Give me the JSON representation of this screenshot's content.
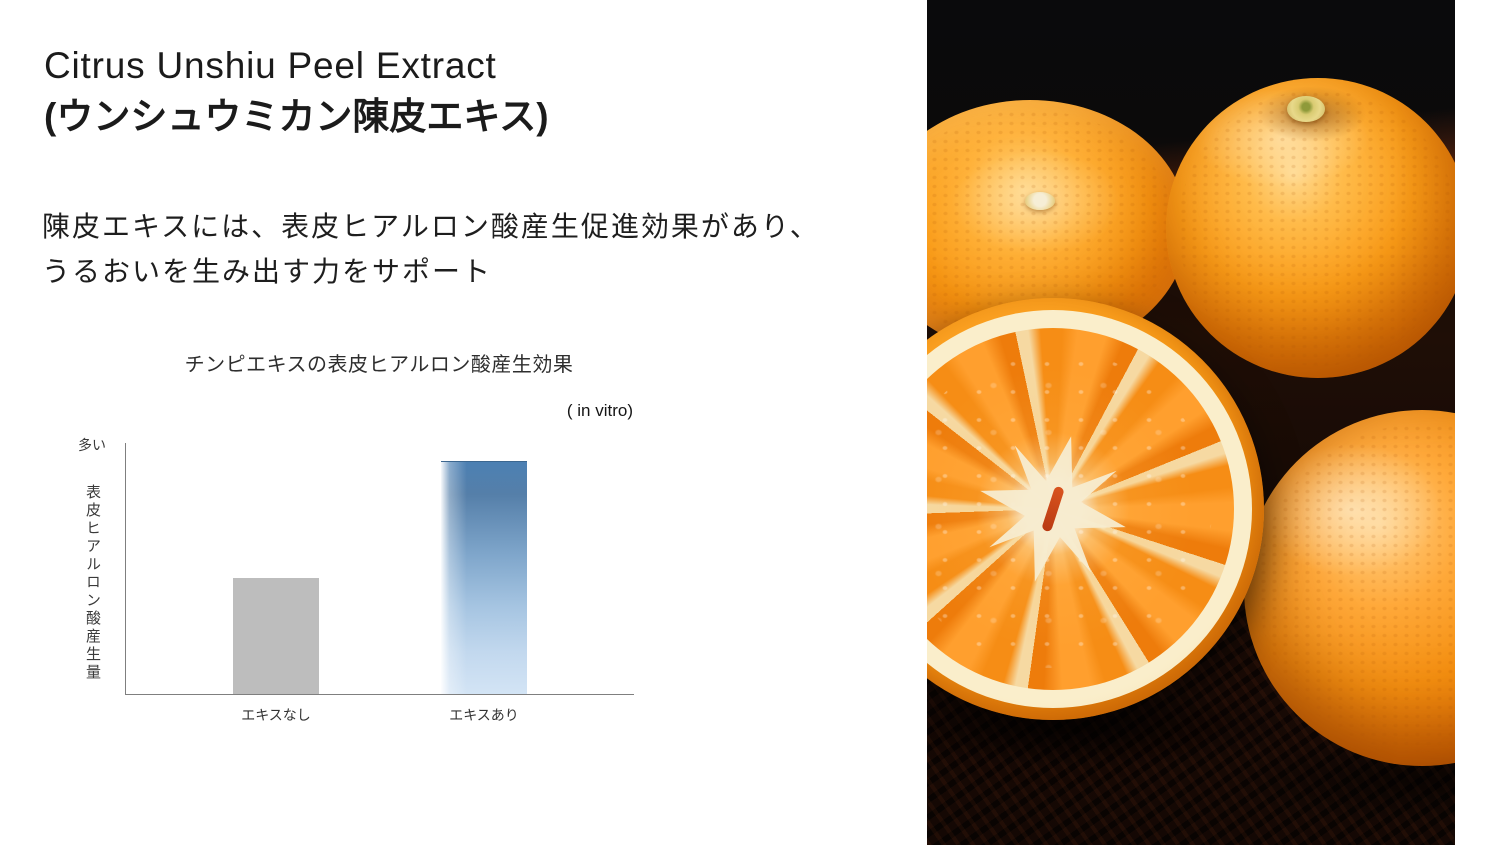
{
  "slide": {
    "title_line1": "Citrus Unshiu Peel Extract",
    "title_line2": "(ウンシュウミカン陳皮エキス)",
    "body_line1": "陳皮エキスには、表皮ヒアルロン酸産生促進効果があり、",
    "body_line2": "うるおいを生み出す力をサポート"
  },
  "chart_data": {
    "type": "bar",
    "title": "チンピエキスの表皮ヒアルロン酸産生効果",
    "condition_note": "( in vitro)",
    "categories": [
      "エキスなし",
      "エキスあり"
    ],
    "values": [
      1.0,
      2.0
    ],
    "values_note": "qualitative axis — bar with extract is about 2.0x the bar without extract",
    "ylabel": "表皮ヒアルロン酸産生量",
    "y_axis_top_label": "多い",
    "xlabel": "",
    "grid": false,
    "legend": false,
    "bar_colors": {
      "エキスなし": "#bdbdbd",
      "エキスあり": "linear-gradient top #4c80b3 to bottom #d3e4f5 with white left sheen"
    },
    "axis_color": "#7f7f7f"
  },
  "photo": {
    "description": "黒い盆の上に置かれたウンシュウミカン。丸ごと3個と、果肉の房が見える半分にカットした断面1個。",
    "dominant_colors": {
      "fruit_peel": "#f8960f",
      "fruit_flesh": "#f68d15",
      "pith": "#f7ecd0",
      "background": "#0c0a09"
    }
  }
}
